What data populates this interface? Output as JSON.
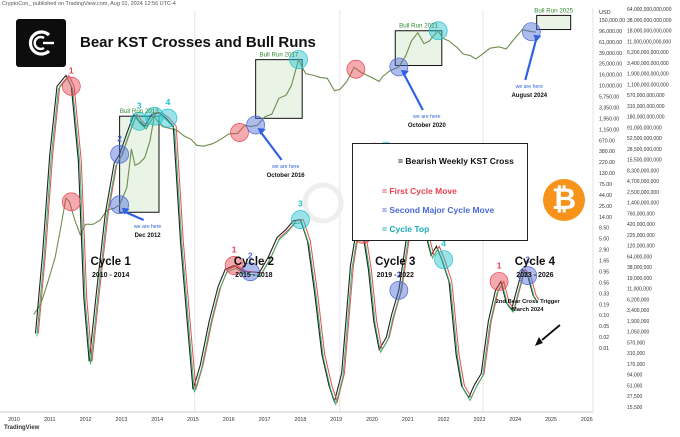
{
  "header_text": "CryptoCon_ published on TradingView.com, Aug 01, 2024 12:56 UTC-4",
  "tradingview_brand": "TradingView",
  "chart_data": {
    "type": "line",
    "title": "Bear KST Crosses and Bull Runs",
    "y_scale": "log",
    "price_axis": {
      "unit_label": "USD",
      "ticks": [
        "150,000.00",
        "96,000.00",
        "61,000.00",
        "39,000.00",
        "25,000.00",
        "16,000.00",
        "10,000.00",
        "5,750.00",
        "3,350.00",
        "1,950.00",
        "1,150.00",
        "670.00",
        "380.00",
        "220.00",
        "130.00",
        "75.00",
        "44.00",
        "25.00",
        "14.00",
        "8.50",
        "5.00",
        "2.90",
        "1.65",
        "0.95",
        "0.55",
        "0.33",
        "0.19",
        "0.10",
        "0.05",
        "0.02",
        "0.01"
      ]
    },
    "indicator_axis": {
      "ticks": [
        "64,000,000,000,000",
        "38,000,000,000,000",
        "18,000,000,000,000",
        "11,000,000,000,000",
        "6,200,000,000,000",
        "3,400,000,000,000",
        "1,900,000,000,000",
        "1,100,000,000,000",
        "570,000,000,000",
        "310,000,000,000",
        "180,000,000,000",
        "91,000,000,000",
        "52,500,000,000",
        "28,500,000,000",
        "15,500,000,000",
        "8,300,000,000",
        "4,700,000,000",
        "2,500,000,000",
        "1,400,000,000",
        "760,000,000",
        "420,000,000",
        "225,000,000",
        "120,000,000",
        "64,000,000",
        "38,000,000",
        "19,000,000",
        "11,000,000",
        "6,200,000",
        "3,400,000",
        "1,900,000",
        "1,050,000",
        "570,000",
        "310,000",
        "170,000",
        "94,000",
        "51,000",
        "27,500",
        "15,500"
      ]
    },
    "x_axis_years": [
      "2010",
      "2011",
      "2012",
      "2013",
      "2014",
      "2015",
      "2016",
      "2017",
      "2018",
      "2019",
      "2020",
      "2021",
      "2022",
      "2023",
      "2024",
      "2025",
      "2026"
    ],
    "bull_runs": [
      {
        "label": "Bull Run 2013"
      },
      {
        "label": "Bull Run 2017"
      },
      {
        "label": "Bull Run 2021"
      },
      {
        "label": "Bull Run 2025"
      }
    ],
    "pointers": [
      {
        "text": "we are here",
        "date": "Dec 2012"
      },
      {
        "text": "we are here",
        "date": "October 2016"
      },
      {
        "text": "we are here",
        "date": "October 2020"
      },
      {
        "text": "we are here",
        "date": "August 2024"
      }
    ],
    "cycles": [
      {
        "name": "Cycle 1",
        "years": "2010 - 2014"
      },
      {
        "name": "Cycle 2",
        "years": "2015 - 2018"
      },
      {
        "name": "Cycle 3",
        "years": "2019 - 2022"
      },
      {
        "name": "Cycle 4",
        "years": "2023 - 2026"
      }
    ],
    "kst_cross_labels": [
      "1",
      "2",
      "3",
      "4",
      "1",
      "2",
      "3",
      "1",
      "2",
      "3",
      "4",
      "1",
      "2"
    ],
    "annotation": {
      "line1": "2nd Bear Cross Trigger",
      "line2": "March 2024"
    },
    "legend": {
      "bearish_cross": "= Bearish Weekly KST Cross",
      "first_move": "= First Cycle Move",
      "second_move": "= Second Major Cycle Move",
      "cycle_top": "= Cycle Top"
    },
    "colors": {
      "first_move": "#e8434f",
      "second_move": "#4c68d8",
      "cycle_top": "#22c2cf",
      "bull_run_label": "#2f8a2f",
      "pointer": "#2f62e0",
      "bitcoin": "#f7931a"
    }
  }
}
